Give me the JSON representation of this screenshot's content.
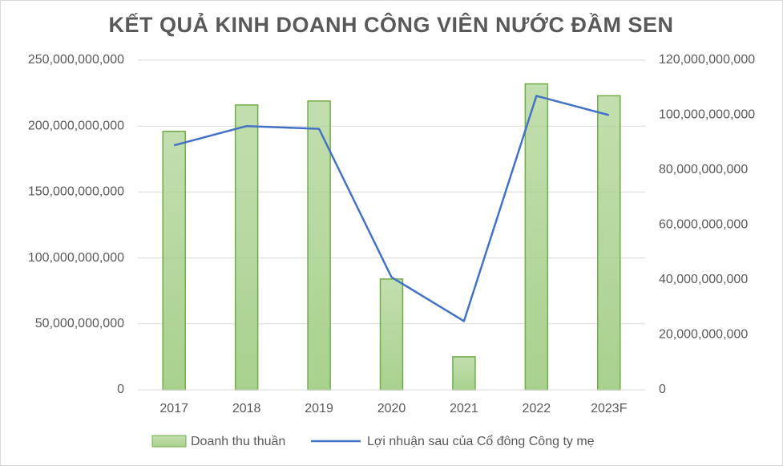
{
  "chart_data": {
    "type": "bar_line",
    "title": "KẾT QUẢ KINH DOANH  CÔNG VIÊN NƯỚC ĐẦM SEN",
    "categories": [
      "2017",
      "2018",
      "2019",
      "2020",
      "2021",
      "2022",
      "2023F"
    ],
    "series": [
      {
        "name": "Doanh thu thuần",
        "type": "bar",
        "color": "#a9d18e",
        "values": [
          196000000000,
          216000000000,
          219000000000,
          84000000000,
          25000000000,
          232000000000,
          223000000000
        ]
      },
      {
        "name": "Lợi nhuận sau của Cổ đông Công ty mẹ",
        "type": "line",
        "axis": "y2",
        "color": "#4472c4",
        "values": [
          89000000000,
          96000000000,
          95000000000,
          41000000000,
          25000000000,
          107000000000,
          100000000000
        ]
      }
    ],
    "ylim": [
      0,
      250000000000
    ],
    "yticks": [
      0,
      {
        "value": 50000000000,
        "label": "50,000,000,000"
      },
      {
        "value": 100000000000,
        "label": "100,000,000,000"
      },
      {
        "value": 150000000000,
        "label": "150,000,000,000"
      },
      {
        "value": 200000000000,
        "label": "200,000,000,000"
      },
      {
        "value": 250000000000,
        "label": "250,000,000,000"
      }
    ],
    "y2lim": [
      0,
      120000000000
    ],
    "y2ticks": [
      0,
      {
        "value": 20000000000,
        "label": "20,000,000,000"
      },
      {
        "value": 40000000000,
        "label": "40,000,000,000"
      },
      {
        "value": 60000000000,
        "label": "60,000,000,000"
      },
      {
        "value": 80000000000,
        "label": "80,000,000,000"
      },
      {
        "value": 100000000000,
        "label": "100,000,000,000"
      },
      {
        "value": 120000000000,
        "label": "120,000,000,000"
      }
    ],
    "grid": true,
    "legend": "bottom"
  }
}
